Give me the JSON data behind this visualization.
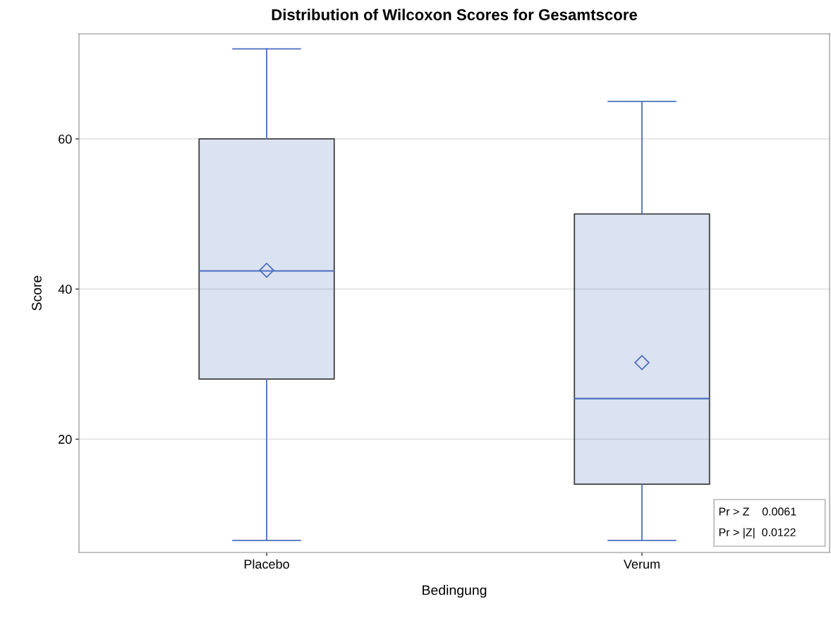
{
  "chart_data": {
    "type": "box",
    "title": "Distribution of Wilcoxon Scores for Gesamtscore",
    "xlabel": "Bedingung",
    "ylabel": "Score",
    "categories": [
      "Placebo",
      "Verum"
    ],
    "series": [
      {
        "color": "#4a6fbf",
        "boxes": [
          {
            "low": 6.5,
            "q1": 28,
            "median": 42.4,
            "q3": 60,
            "high": 72,
            "mean": 42.5
          },
          {
            "low": 6.5,
            "q1": 14,
            "median": 25.4,
            "q3": 50,
            "high": 65,
            "mean": 30.2
          }
        ]
      }
    ],
    "ylim": [
      4.9,
      74
    ],
    "yticks": [
      20,
      40,
      60
    ],
    "grid": "y",
    "marker": "diamond",
    "annotations": [
      "Pr > Z    0.0061",
      "Pr > |Z|  0.0122"
    ]
  }
}
